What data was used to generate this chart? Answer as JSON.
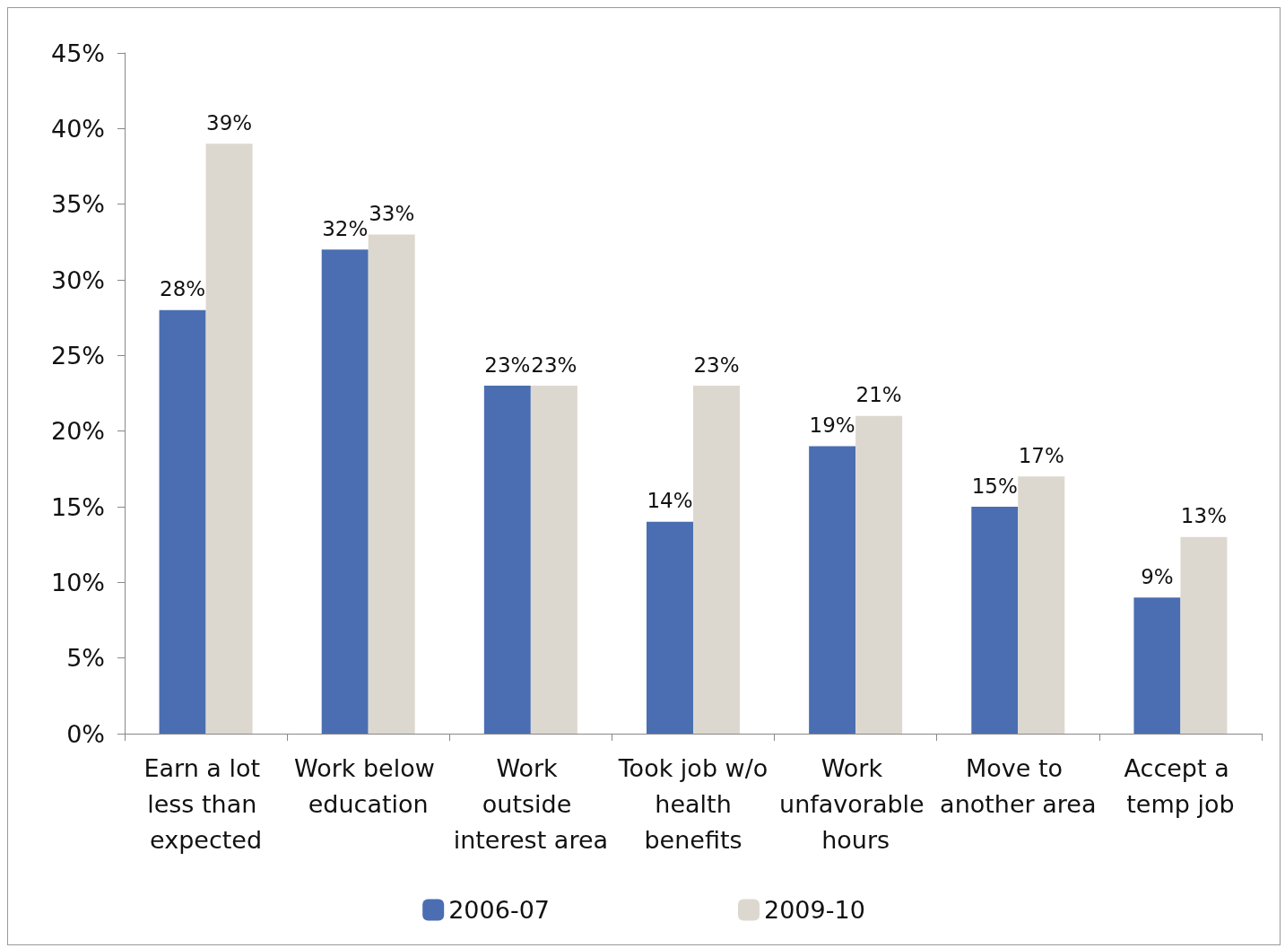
{
  "chart_data": {
    "type": "bar",
    "categories": [
      "Earn a lot less than expected",
      "Work below education",
      "Work outside interest area",
      "Took job w/o health benefits",
      "Work unfavorable hours",
      "Move to another area",
      "Accept a temp job"
    ],
    "series": [
      {
        "name": "2006-07",
        "color": "#4a6eb1",
        "values": [
          28,
          32,
          23,
          14,
          19,
          15,
          9
        ],
        "value_labels": [
          "28%",
          "32%",
          "23%",
          "14%",
          "19%",
          "15%",
          "9%"
        ]
      },
      {
        "name": "2009-10",
        "color": "#ddd8cf",
        "values": [
          39,
          33,
          23,
          23,
          21,
          17,
          13
        ],
        "value_labels": [
          "39%",
          "33%",
          "23%",
          "23%",
          "21%",
          "17%",
          "13%"
        ]
      }
    ],
    "ylim": [
      0,
      45
    ],
    "yticks": [
      {
        "value": 0,
        "label": "0%"
      },
      {
        "value": 5,
        "label": "5%"
      },
      {
        "value": 10,
        "label": "10%"
      },
      {
        "value": 15,
        "label": "15%"
      },
      {
        "value": 20,
        "label": "20%"
      },
      {
        "value": 25,
        "label": "25%"
      },
      {
        "value": 30,
        "label": "30%"
      },
      {
        "value": 35,
        "label": "35%"
      },
      {
        "value": 40,
        "label": "40%"
      },
      {
        "value": 45,
        "label": "45%"
      }
    ],
    "grid": false,
    "legend": "bottom"
  }
}
